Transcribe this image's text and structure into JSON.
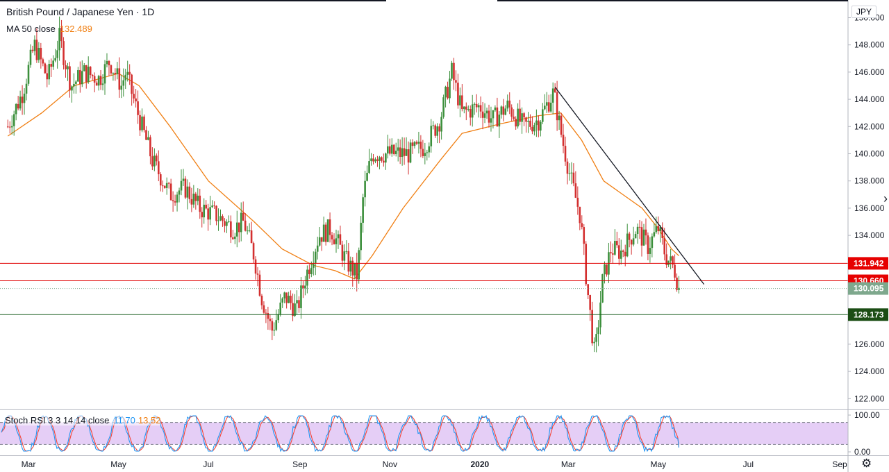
{
  "header": {
    "title": "British Pound / Japanese Yen · 1D",
    "ma_label": "MA 50 close",
    "ma_value": "132.489",
    "currency": "JPY"
  },
  "oscillator": {
    "label": "Stoch RSI 3 3 14 14 close",
    "k_value": "11.70",
    "d_value": "13.52",
    "ticks": [
      "100.00",
      "0.00"
    ]
  },
  "colors": {
    "bull": "#26a69a",
    "bull_body": "#3b8f3b",
    "bear": "#ef5350",
    "bear_body": "#d32f2f",
    "ma": "#f07f13",
    "stoch_k": "#2196f3",
    "stoch_d": "#f44336",
    "band_fill": "#e1c5f5",
    "red_line": "#e00000",
    "green_line": "#1b5e20",
    "last_price": "#7ea88d"
  },
  "chart_data": {
    "type": "candlestick",
    "title": "British Pound / Japanese Yen · 1D",
    "y_ticks": [
      150,
      148,
      146,
      144,
      142,
      140,
      138,
      136,
      134,
      132,
      130,
      128,
      126,
      124,
      122
    ],
    "y_tick_labels": [
      "150.000",
      "148.000",
      "146.000",
      "144.000",
      "142.000",
      "140.000",
      "138.000",
      "136.000",
      "134.000",
      "132.000",
      "130.000",
      "128.000",
      "126.000",
      "124.000",
      "122.000"
    ],
    "ylim": [
      121.3,
      151.3
    ],
    "x_labels": [
      "Mar",
      "May",
      "Jul",
      "Sep",
      "Nov",
      "2020",
      "Mar",
      "May",
      "Jul",
      "Sep"
    ],
    "horizontal_levels": [
      {
        "value": 131.942,
        "label": "131.942",
        "color": "#e00000"
      },
      {
        "value": 130.66,
        "label": "130.660",
        "color": "#e00000"
      },
      {
        "value": 128.173,
        "label": "128.173",
        "color": "#1b5e20"
      }
    ],
    "last_price": {
      "value": 130.095,
      "label": "130.095"
    },
    "trendline": {
      "from": {
        "date": "2020-02-21",
        "price": 144.9
      },
      "to": {
        "date": "2020-06-01",
        "price": 130.4
      }
    },
    "price_path": [
      [
        "2019-02-15",
        142.0
      ],
      [
        "2019-02-25",
        144.5
      ],
      [
        "2019-03-05",
        148.0
      ],
      [
        "2019-03-14",
        145.5
      ],
      [
        "2019-03-22",
        148.5
      ],
      [
        "2019-03-30",
        145.0
      ],
      [
        "2019-04-08",
        146.0
      ],
      [
        "2019-04-18",
        145.5
      ],
      [
        "2019-04-25",
        146.8
      ],
      [
        "2019-05-03",
        145.0
      ],
      [
        "2019-05-06",
        146.0
      ],
      [
        "2019-05-14",
        143.0
      ],
      [
        "2019-05-24",
        139.5
      ],
      [
        "2019-06-05",
        137.0
      ],
      [
        "2019-06-15",
        137.5
      ],
      [
        "2019-06-25",
        136.0
      ],
      [
        "2019-07-06",
        135.5
      ],
      [
        "2019-07-18",
        134.5
      ],
      [
        "2019-07-25",
        135.0
      ],
      [
        "2019-08-01",
        132.5
      ],
      [
        "2019-08-06",
        129.5
      ],
      [
        "2019-08-13",
        127.0
      ],
      [
        "2019-08-22",
        129.5
      ],
      [
        "2019-08-30",
        128.5
      ],
      [
        "2019-09-05",
        131.0
      ],
      [
        "2019-09-14",
        134.0
      ],
      [
        "2019-09-22",
        134.5
      ],
      [
        "2019-10-03",
        132.0
      ],
      [
        "2019-10-10",
        131.0
      ],
      [
        "2019-10-14",
        137.0
      ],
      [
        "2019-10-20",
        140.0
      ],
      [
        "2019-11-01",
        140.0
      ],
      [
        "2019-11-14",
        140.0
      ],
      [
        "2019-11-24",
        140.5
      ],
      [
        "2019-12-05",
        142.5
      ],
      [
        "2019-12-13",
        146.0
      ],
      [
        "2019-12-20",
        143.0
      ],
      [
        "2020-01-01",
        143.5
      ],
      [
        "2020-01-10",
        142.5
      ],
      [
        "2020-01-20",
        143.5
      ],
      [
        "2020-01-31",
        142.0
      ],
      [
        "2020-02-10",
        142.5
      ],
      [
        "2020-02-20",
        144.5
      ],
      [
        "2020-02-26",
        141.0
      ],
      [
        "2020-03-03",
        138.0
      ],
      [
        "2020-03-09",
        135.5
      ],
      [
        "2020-03-14",
        130.0
      ],
      [
        "2020-03-19",
        125.0
      ],
      [
        "2020-03-24",
        130.5
      ],
      [
        "2020-03-30",
        133.0
      ],
      [
        "2020-04-06",
        132.8
      ],
      [
        "2020-04-16",
        134.5
      ],
      [
        "2020-04-24",
        133.2
      ],
      [
        "2020-05-01",
        134.5
      ],
      [
        "2020-05-06",
        132.5
      ],
      [
        "2020-05-12",
        131.5
      ],
      [
        "2020-05-15",
        130.1
      ]
    ],
    "ma_path": [
      [
        "2019-02-15",
        141.3
      ],
      [
        "2019-03-10",
        143.0
      ],
      [
        "2019-04-01",
        145.0
      ],
      [
        "2019-05-01",
        145.9
      ],
      [
        "2019-05-15",
        145.0
      ],
      [
        "2019-06-05",
        142.0
      ],
      [
        "2019-07-01",
        138.0
      ],
      [
        "2019-08-01",
        135.0
      ],
      [
        "2019-08-20",
        133.0
      ],
      [
        "2019-09-10",
        131.8
      ],
      [
        "2019-09-25",
        131.4
      ],
      [
        "2019-10-08",
        130.8
      ],
      [
        "2019-10-20",
        132.5
      ],
      [
        "2019-11-10",
        136.0
      ],
      [
        "2019-12-05",
        139.5
      ],
      [
        "2019-12-20",
        141.5
      ],
      [
        "2020-01-15",
        142.2
      ],
      [
        "2020-02-10",
        142.8
      ],
      [
        "2020-02-25",
        143.0
      ],
      [
        "2020-03-10",
        141.0
      ],
      [
        "2020-03-25",
        138.0
      ],
      [
        "2020-04-20",
        136.0
      ],
      [
        "2020-05-01",
        134.5
      ],
      [
        "2020-05-10",
        133.0
      ],
      [
        "2020-05-15",
        132.5
      ]
    ],
    "oscillator": {
      "name": "Stoch RSI 3 3 14 14 close",
      "ylim": [
        0,
        100
      ],
      "upper_band": 80,
      "lower_band": 20,
      "k_last": 11.7,
      "d_last": 13.52
    }
  }
}
